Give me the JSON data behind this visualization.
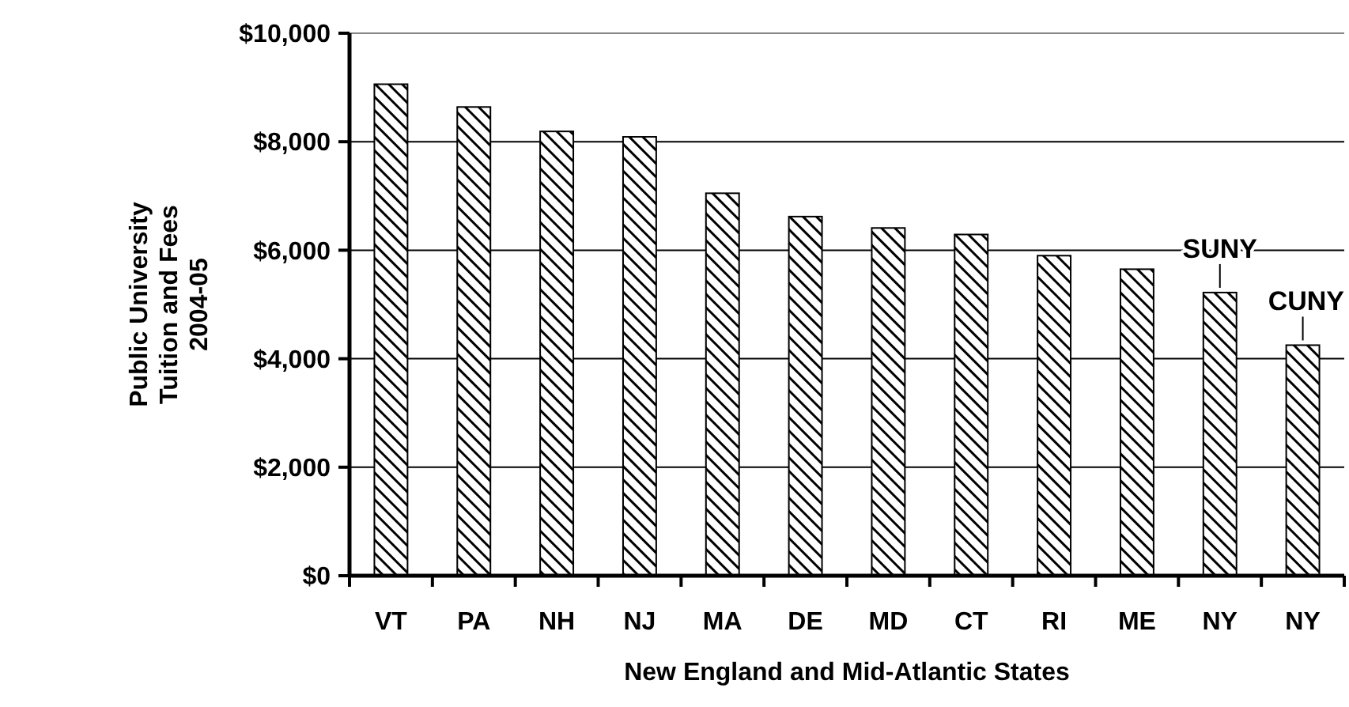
{
  "chart_data": {
    "type": "bar",
    "xlabel": "New England and Mid-Atlantic States",
    "ylabel": "Public University\nTuition and Fees\n2004-05",
    "categories": [
      "VT",
      "PA",
      "NH",
      "NJ",
      "MA",
      "DE",
      "MD",
      "CT",
      "RI",
      "ME",
      "NY",
      "NY"
    ],
    "values": [
      9060,
      8640,
      8190,
      8090,
      7050,
      6620,
      6410,
      6290,
      5900,
      5650,
      5220,
      4250
    ],
    "color": "#000000",
    "ylim": [
      0,
      10000
    ],
    "yticks": [
      {
        "value": 0,
        "label": "$0"
      },
      {
        "value": 2000,
        "label": "$2,000"
      },
      {
        "value": 4000,
        "label": "$4,000"
      },
      {
        "value": 6000,
        "label": "$6,000"
      },
      {
        "value": 8000,
        "label": "$8,000"
      },
      {
        "value": 10000,
        "label": "$10,000"
      }
    ],
    "grid": "y",
    "annotations": [
      "SUNY",
      "CUNY"
    ]
  }
}
